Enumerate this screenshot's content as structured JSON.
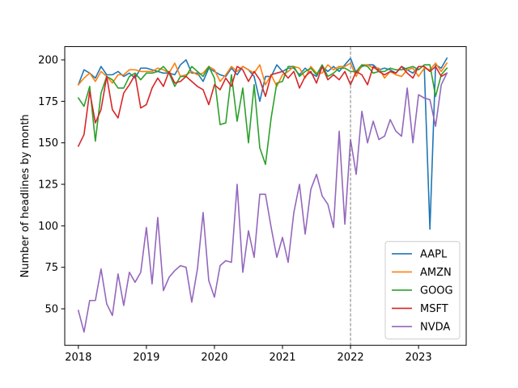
{
  "chart_data": {
    "type": "line",
    "title": "",
    "xlabel": "",
    "ylabel": "Number of headlines by month",
    "xlim": [
      2017.8,
      2023.7
    ],
    "ylim": [
      28,
      208
    ],
    "x_ticks": [
      2018,
      2019,
      2020,
      2021,
      2022,
      2023
    ],
    "x_tick_labels": [
      "2018",
      "2019",
      "2020",
      "2021",
      "2022",
      "2023"
    ],
    "y_ticks": [
      50,
      75,
      100,
      125,
      150,
      175,
      200
    ],
    "y_tick_labels": [
      "50",
      "75",
      "100",
      "125",
      "150",
      "175",
      "200"
    ],
    "grid": false,
    "legend_position": "lower-right",
    "vline": {
      "x": 2022,
      "style": "dashed",
      "color": "#808080"
    },
    "start": {
      "year": 2018,
      "month": 1
    },
    "series": [
      {
        "name": "AAPL",
        "color": "#1f77b4",
        "values": [
          185,
          194,
          192,
          189,
          196,
          191,
          191,
          193,
          190,
          192,
          189,
          195,
          195,
          194,
          193,
          192,
          192,
          191,
          197,
          200,
          192,
          192,
          187,
          195,
          193,
          191,
          190,
          195,
          191,
          196,
          194,
          190,
          175,
          190,
          190,
          197,
          193,
          195,
          195,
          191,
          195,
          192,
          190,
          196,
          193,
          196,
          193,
          197,
          201,
          192,
          196,
          197,
          197,
          194,
          195,
          194,
          192,
          196,
          194,
          192,
          196,
          196,
          98,
          197,
          195,
          201
        ]
      },
      {
        "name": "AMZN",
        "color": "#ff7f0e",
        "values": [
          185,
          189,
          192,
          187,
          193,
          190,
          186,
          191,
          191,
          194,
          194,
          193,
          193,
          193,
          195,
          194,
          192,
          198,
          190,
          191,
          193,
          191,
          192,
          196,
          194,
          187,
          191,
          196,
          193,
          196,
          194,
          192,
          197,
          185,
          191,
          184,
          191,
          193,
          196,
          195,
          189,
          196,
          192,
          192,
          197,
          194,
          196,
          196,
          198,
          190,
          197,
          197,
          195,
          195,
          189,
          193,
          191,
          190,
          194,
          195,
          190,
          195,
          194,
          198,
          193,
          198
        ]
      },
      {
        "name": "GOOG",
        "color": "#2ca02c",
        "values": [
          177,
          172,
          184,
          151,
          180,
          190,
          188,
          183,
          183,
          190,
          192,
          188,
          192,
          192,
          193,
          196,
          192,
          184,
          190,
          190,
          196,
          193,
          190,
          196,
          189,
          161,
          162,
          191,
          163,
          183,
          150,
          185,
          147,
          137,
          165,
          186,
          187,
          196,
          196,
          190,
          193,
          195,
          191,
          197,
          190,
          192,
          195,
          195,
          193,
          193,
          197,
          196,
          192,
          193,
          193,
          195,
          194,
          194,
          195,
          196,
          194,
          197,
          197,
          178,
          191,
          195
        ]
      },
      {
        "name": "MSFT",
        "color": "#d62728",
        "values": [
          148,
          155,
          181,
          162,
          170,
          190,
          170,
          165,
          180,
          185,
          191,
          171,
          173,
          183,
          189,
          184,
          193,
          186,
          187,
          190,
          187,
          184,
          182,
          173,
          185,
          182,
          189,
          184,
          196,
          194,
          187,
          193,
          188,
          178,
          191,
          192,
          193,
          189,
          193,
          183,
          190,
          193,
          186,
          196,
          188,
          191,
          188,
          193,
          185,
          193,
          191,
          185,
          196,
          193,
          191,
          193,
          192,
          196,
          192,
          189,
          196,
          196,
          193,
          196,
          190,
          192
        ]
      },
      {
        "name": "NVDA",
        "color": "#9467bd",
        "values": [
          49,
          36,
          55,
          55,
          74,
          53,
          46,
          71,
          52,
          72,
          66,
          72,
          99,
          65,
          105,
          61,
          69,
          73,
          76,
          75,
          54,
          74,
          108,
          67,
          57,
          76,
          79,
          78,
          125,
          72,
          97,
          81,
          119,
          119,
          99,
          81,
          93,
          78,
          108,
          125,
          95,
          122,
          131,
          118,
          113,
          99,
          157,
          101,
          152,
          131,
          169,
          150,
          163,
          152,
          154,
          164,
          157,
          154,
          183,
          150,
          179,
          177,
          176,
          160,
          185,
          192
        ]
      }
    ]
  }
}
